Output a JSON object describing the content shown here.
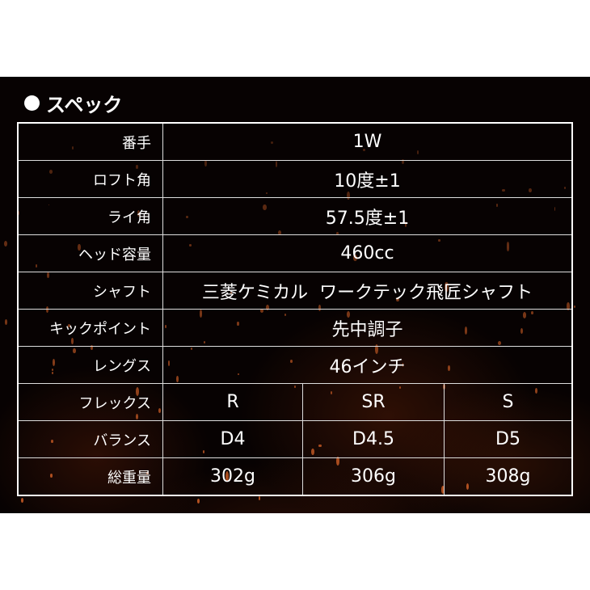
{
  "section_title": "スペック",
  "specs": [
    {
      "label": "番手",
      "value": "1W"
    },
    {
      "label": "ロフト角",
      "value": "10度±1"
    },
    {
      "label": "ライ角",
      "value": "57.5度±1"
    },
    {
      "label": "ヘッド容量",
      "value": "460cc"
    },
    {
      "label": "シャフト",
      "value": "三菱ケミカル  ワークテック飛匠シャフト"
    },
    {
      "label": "キックポイント",
      "value": "先中調子"
    },
    {
      "label": "レングス",
      "value": "46インチ"
    }
  ],
  "variants": [
    {
      "label": "フレックス",
      "values": [
        "R",
        "SR",
        "S"
      ]
    },
    {
      "label": "バランス",
      "values": [
        "D4",
        "D4.5",
        "D5"
      ]
    },
    {
      "label": "総重量",
      "values": [
        "302g",
        "306g",
        "308g"
      ]
    }
  ]
}
